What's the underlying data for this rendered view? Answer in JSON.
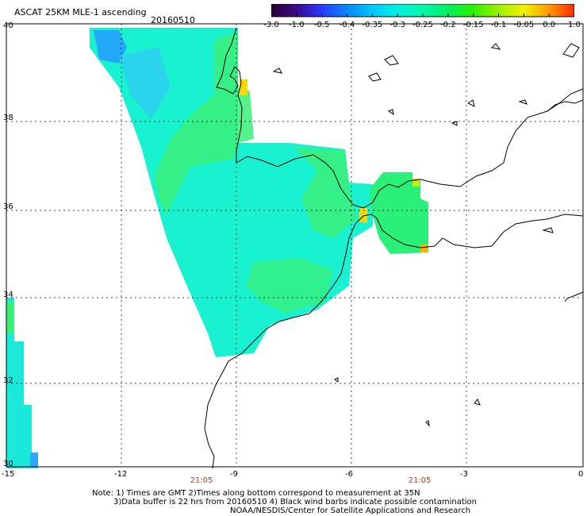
{
  "header": {
    "title": "ASCAT 25KM MLE-1 ascending",
    "date": "20160510"
  },
  "colorbar": {
    "labels": [
      "-3.0",
      "-1.0",
      "-0.5",
      "-0.4",
      "-0.35",
      "-0.3",
      "-0.25",
      "-0.2",
      "-0.15",
      "-0.1",
      "-0.05",
      "0.0",
      "1.0"
    ],
    "colors": [
      "#2a0033",
      "#3b0a8c",
      "#2a39ff",
      "#0a86ff",
      "#00c8ff",
      "#00f0e0",
      "#00f7a8",
      "#00f060",
      "#2af000",
      "#9cf000",
      "#f0f000",
      "#ff9900",
      "#ff2a00"
    ]
  },
  "axes": {
    "x_ticks": [
      "-15",
      "-12",
      "-9",
      "-6",
      "-3",
      "0"
    ],
    "y_ticks": [
      "40",
      "38",
      "36",
      "34",
      "32",
      "30"
    ]
  },
  "times": [
    "21:05",
    "21:05"
  ],
  "notes": {
    "line1": "Note: 1) Times are GMT 2)Times along bottom correspond to measurement at 35N",
    "line2": "3)Data buffer is 22 hrs from 20160510 4) Black wind barbs indicate possible contamination",
    "line3": "NOAA/NESDIS/Center for Satellite Applications and Research"
  }
}
